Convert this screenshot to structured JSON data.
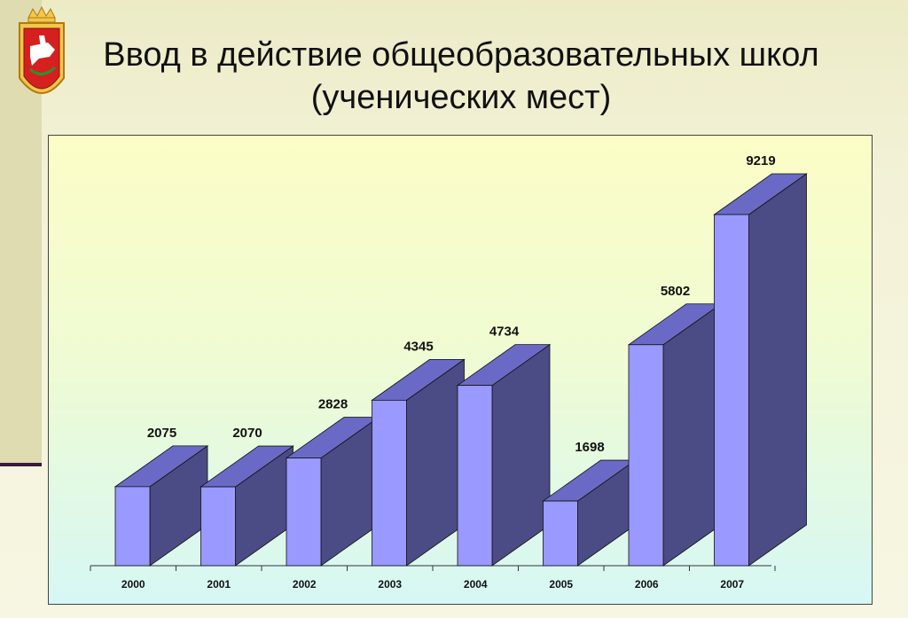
{
  "title": {
    "line1": "Ввод в действие общеобразовательных школ",
    "line2": "(ученических мест)"
  },
  "colors": {
    "bar_front": "#9999ff",
    "bar_top": "#6a6ac6",
    "bar_side": "#4b4b85",
    "frame_band": "#dedcb0",
    "rule": "#3b1a3b"
  },
  "chart_data": {
    "type": "bar",
    "style": "3d",
    "categories": [
      "2000",
      "2001",
      "2002",
      "2003",
      "2004",
      "2005",
      "2006",
      "2007"
    ],
    "values": [
      2075,
      2070,
      2828,
      4345,
      4734,
      1698,
      5802,
      9219
    ],
    "data_labels": [
      "2075",
      "2070",
      "2828",
      "4345",
      "4734",
      "1698",
      "5802",
      "9219"
    ],
    "ylim": [
      0,
      9219
    ],
    "grid": false,
    "legend": "none"
  }
}
